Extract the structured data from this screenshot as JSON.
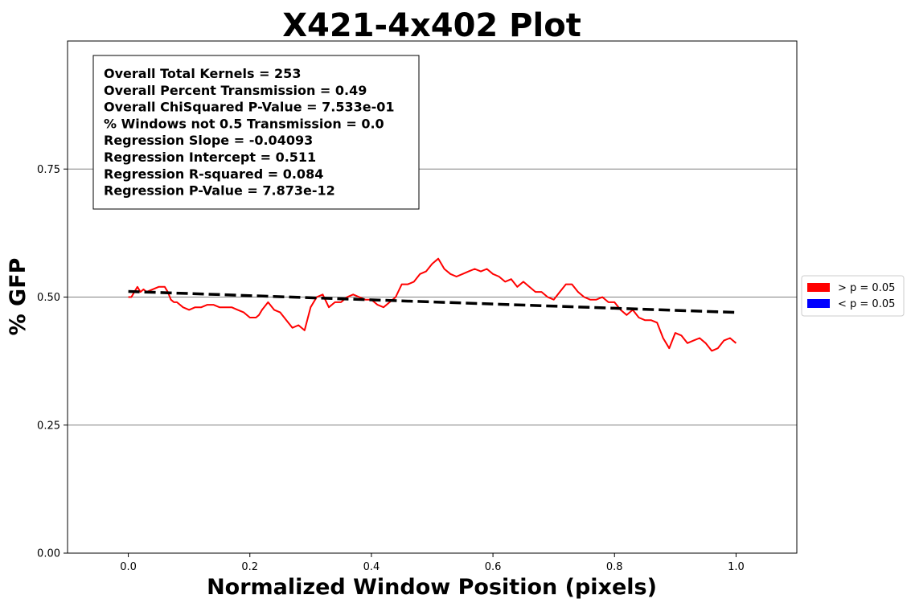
{
  "chart_data": {
    "type": "line",
    "title": "X421-4x402 Plot",
    "xlabel": "Normalized Window Position (pixels)",
    "ylabel": "% GFP",
    "xlim": [
      -0.1,
      1.1
    ],
    "ylim": [
      0.0,
      1.0
    ],
    "xticks": [
      0.0,
      0.2,
      0.4,
      0.6,
      0.8,
      1.0
    ],
    "xtick_labels": [
      "0.0",
      "0.2",
      "0.4",
      "0.6",
      "0.8",
      "1.0"
    ],
    "yticks": [
      0.0,
      0.25,
      0.5,
      0.75
    ],
    "ytick_labels": [
      "0.00",
      "0.25",
      "0.50",
      "0.75"
    ],
    "grid": "horizontal",
    "stats_box": [
      "Overall Total Kernels = 253",
      "Overall Percent Transmission = 0.49",
      "Overall ChiSquared P-Value = 7.533e-01",
      "% Windows not 0.5 Transmission = 0.0",
      "Regression Slope = -0.04093",
      "Regression Intercept = 0.511",
      "Regression R-squared = 0.084",
      "Regression P-Value = 7.873e-12"
    ],
    "legend": {
      "placement": "right",
      "entries": [
        {
          "label": "> p = 0.05",
          "color": "#ff0000"
        },
        {
          "label": "< p = 0.05",
          "color": "#0000ff"
        }
      ]
    },
    "series": [
      {
        "color": "#ff0000",
        "style": "solid",
        "x": [
          0.0,
          0.005,
          0.01,
          0.015,
          0.02,
          0.025,
          0.03,
          0.04,
          0.05,
          0.06,
          0.065,
          0.07,
          0.075,
          0.08,
          0.09,
          0.1,
          0.11,
          0.12,
          0.13,
          0.14,
          0.15,
          0.16,
          0.17,
          0.18,
          0.19,
          0.2,
          0.21,
          0.215,
          0.22,
          0.23,
          0.24,
          0.25,
          0.26,
          0.27,
          0.28,
          0.29,
          0.3,
          0.31,
          0.32,
          0.33,
          0.34,
          0.35,
          0.36,
          0.37,
          0.38,
          0.39,
          0.4,
          0.41,
          0.42,
          0.43,
          0.44,
          0.45,
          0.46,
          0.47,
          0.48,
          0.49,
          0.5,
          0.51,
          0.52,
          0.53,
          0.54,
          0.55,
          0.56,
          0.57,
          0.58,
          0.59,
          0.6,
          0.61,
          0.62,
          0.63,
          0.64,
          0.65,
          0.66,
          0.67,
          0.68,
          0.69,
          0.7,
          0.71,
          0.72,
          0.73,
          0.74,
          0.75,
          0.76,
          0.77,
          0.78,
          0.79,
          0.8,
          0.81,
          0.82,
          0.83,
          0.84,
          0.85,
          0.86,
          0.87,
          0.88,
          0.89,
          0.9,
          0.91,
          0.92,
          0.93,
          0.94,
          0.95,
          0.96,
          0.97,
          0.98,
          0.99,
          1.0
        ],
        "y": [
          0.5,
          0.5,
          0.51,
          0.52,
          0.51,
          0.515,
          0.51,
          0.515,
          0.52,
          0.52,
          0.51,
          0.495,
          0.49,
          0.49,
          0.48,
          0.475,
          0.48,
          0.48,
          0.485,
          0.485,
          0.48,
          0.48,
          0.48,
          0.475,
          0.47,
          0.46,
          0.46,
          0.465,
          0.475,
          0.49,
          0.475,
          0.47,
          0.455,
          0.44,
          0.445,
          0.435,
          0.48,
          0.5,
          0.505,
          0.48,
          0.49,
          0.49,
          0.5,
          0.505,
          0.5,
          0.495,
          0.495,
          0.485,
          0.48,
          0.49,
          0.5,
          0.525,
          0.525,
          0.53,
          0.545,
          0.55,
          0.565,
          0.575,
          0.555,
          0.545,
          0.54,
          0.545,
          0.55,
          0.555,
          0.55,
          0.555,
          0.545,
          0.54,
          0.53,
          0.535,
          0.52,
          0.53,
          0.52,
          0.51,
          0.51,
          0.5,
          0.495,
          0.51,
          0.525,
          0.525,
          0.51,
          0.5,
          0.495,
          0.495,
          0.5,
          0.49,
          0.49,
          0.475,
          0.465,
          0.475,
          0.46,
          0.455,
          0.455,
          0.45,
          0.42,
          0.4,
          0.43,
          0.425,
          0.41,
          0.415,
          0.42,
          0.41,
          0.395,
          0.4,
          0.415,
          0.42,
          0.41
        ]
      },
      {
        "color": "#000000",
        "style": "dashed",
        "x": [
          0.0,
          1.0
        ],
        "y": [
          0.511,
          0.47
        ]
      }
    ]
  }
}
